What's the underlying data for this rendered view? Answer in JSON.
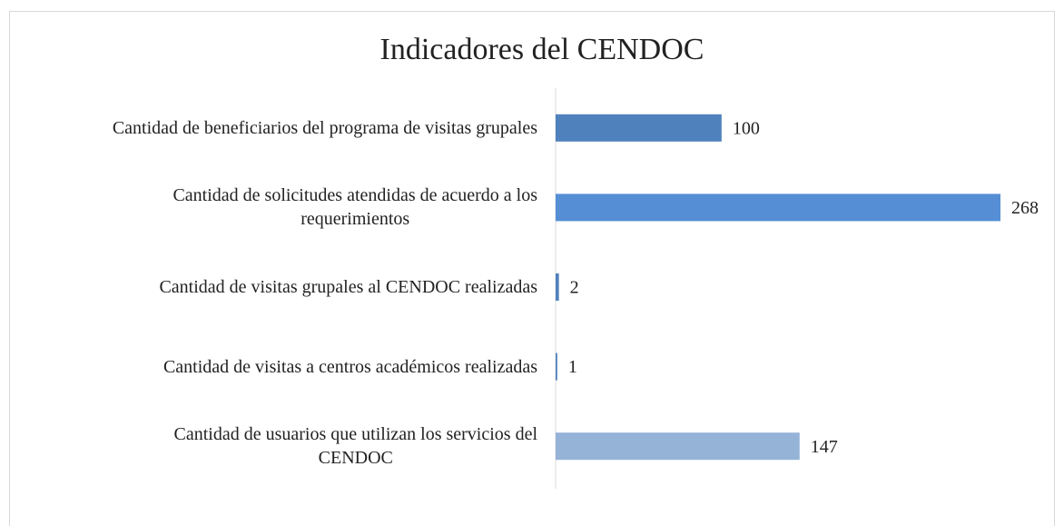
{
  "chart_data": {
    "type": "bar",
    "orientation": "horizontal",
    "title": "Indicadores del CENDOC",
    "categories": [
      "Cantidad de beneficiarios del programa de visitas grupales",
      "Cantidad de solicitudes atendidas de acuerdo a los\nrequerimientos",
      "Cantidad de visitas grupales al CENDOC realizadas",
      "Cantidad de visitas a centros académicos realizadas",
      "Cantidad de usuarios que utilizan los servicios del\nCENDOC"
    ],
    "values": [
      100,
      268,
      2,
      1,
      147
    ],
    "colors": [
      "#4f81bd",
      "#558ed5",
      "#4f81bd",
      "#4f81bd",
      "#95b3d7"
    ]
  }
}
